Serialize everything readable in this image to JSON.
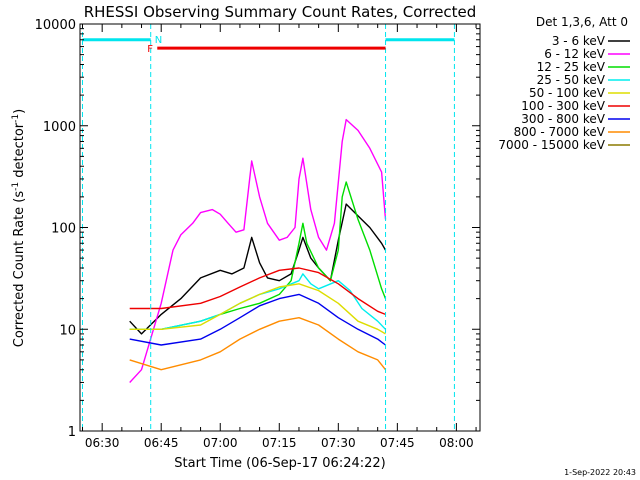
{
  "chart_data": {
    "type": "line",
    "title": "RHESSI Observing Summary Count Rates, Corrected",
    "xlabel": "Start Time (06-Sep-17 06:24:22)",
    "ylabel": "Corrected Count Rate (s⁻¹ detector⁻¹)",
    "ylabel_parts": [
      "Corrected Count Rate (s",
      "-1",
      " detector",
      "-1",
      ")"
    ],
    "yscale": "log",
    "ylim": [
      1,
      10000
    ],
    "xlim": [
      "06:24:22",
      "08:06:00"
    ],
    "x_ticks": [
      "06:30",
      "06:45",
      "07:00",
      "07:15",
      "07:30",
      "07:45",
      "08:00"
    ],
    "y_ticks": [
      "1",
      "10",
      "100",
      "1000",
      "10000"
    ],
    "legend_header": "Det 1,3,6, Att 0",
    "legend_position": "top-right, outside plot",
    "timestamp": "1-Sep-2022 20:43",
    "flags": {
      "night_label": "N",
      "flare_label": "F",
      "night_intervals": [
        [
          "06:25:00",
          "06:42:20"
        ],
        [
          "07:42:00",
          "07:59:30"
        ]
      ],
      "flare_interval": [
        "06:44:00",
        "07:42:00"
      ],
      "night_level": 7000,
      "flare_level": 5800,
      "night_color": "#00e5ee",
      "flare_color": "#ee0000"
    },
    "series": [
      {
        "name": "3 - 6 keV",
        "color": "#000000",
        "x": [
          "06:37",
          "06:40",
          "06:45",
          "06:50",
          "06:55",
          "07:00",
          "07:03",
          "07:06",
          "07:08",
          "07:10",
          "07:12",
          "07:15",
          "07:18",
          "07:20",
          "07:21",
          "07:23",
          "07:25",
          "07:28",
          "07:30",
          "07:32",
          "07:35",
          "07:38",
          "07:41",
          "07:42"
        ],
        "y": [
          12,
          9,
          14,
          20,
          32,
          38,
          35,
          40,
          80,
          45,
          32,
          30,
          35,
          60,
          80,
          50,
          40,
          30,
          75,
          170,
          130,
          100,
          70,
          60
        ]
      },
      {
        "name": "6 - 12 keV",
        "color": "#ff00ff",
        "x": [
          "06:37",
          "06:40",
          "06:45",
          "06:48",
          "06:50",
          "06:53",
          "06:55",
          "06:58",
          "07:00",
          "07:02",
          "07:04",
          "07:06",
          "07:08",
          "07:10",
          "07:12",
          "07:15",
          "07:17",
          "07:19",
          "07:20",
          "07:21",
          "07:23",
          "07:25",
          "07:27",
          "07:29",
          "07:31",
          "07:32",
          "07:35",
          "07:38",
          "07:41",
          "07:42"
        ],
        "y": [
          3,
          4,
          18,
          60,
          85,
          110,
          140,
          150,
          135,
          110,
          90,
          95,
          450,
          200,
          110,
          75,
          80,
          100,
          300,
          480,
          150,
          80,
          60,
          110,
          700,
          1150,
          900,
          600,
          350,
          120
        ]
      },
      {
        "name": "12 - 25 keV",
        "color": "#00dd00",
        "x": [
          "06:37",
          "06:45",
          "06:55",
          "07:00",
          "07:05",
          "07:10",
          "07:15",
          "07:18",
          "07:20",
          "07:21",
          "07:22",
          "07:25",
          "07:28",
          "07:30",
          "07:31",
          "07:32",
          "07:35",
          "07:38",
          "07:41",
          "07:42"
        ],
        "y": [
          10,
          10,
          12,
          14,
          16,
          18,
          22,
          30,
          70,
          110,
          70,
          40,
          30,
          60,
          200,
          280,
          120,
          60,
          25,
          20
        ]
      },
      {
        "name": "25 - 50 keV",
        "color": "#00eeee",
        "x": [
          "06:37",
          "06:45",
          "06:55",
          "07:00",
          "07:05",
          "07:10",
          "07:15",
          "07:20",
          "07:21",
          "07:23",
          "07:25",
          "07:30",
          "07:33",
          "07:36",
          "07:40",
          "07:42"
        ],
        "y": [
          10,
          10,
          12,
          14,
          18,
          22,
          25,
          30,
          35,
          28,
          25,
          30,
          24,
          16,
          12,
          10
        ]
      },
      {
        "name": "50 - 100 keV",
        "color": "#dddd00",
        "x": [
          "06:37",
          "06:45",
          "06:55",
          "07:00",
          "07:05",
          "07:10",
          "07:15",
          "07:20",
          "07:25",
          "07:30",
          "07:35",
          "07:40",
          "07:42"
        ],
        "y": [
          10,
          10,
          11,
          14,
          18,
          22,
          26,
          28,
          24,
          18,
          12,
          10,
          9
        ]
      },
      {
        "name": "100 - 300 keV",
        "color": "#ee0000",
        "x": [
          "06:37",
          "06:45",
          "06:55",
          "07:00",
          "07:05",
          "07:10",
          "07:15",
          "07:20",
          "07:25",
          "07:30",
          "07:35",
          "07:40",
          "07:42"
        ],
        "y": [
          16,
          16,
          18,
          21,
          26,
          32,
          38,
          40,
          36,
          28,
          20,
          15,
          14
        ]
      },
      {
        "name": "300 - 800 keV",
        "color": "#0000ee",
        "x": [
          "06:37",
          "06:45",
          "06:55",
          "07:00",
          "07:05",
          "07:10",
          "07:15",
          "07:20",
          "07:25",
          "07:30",
          "07:35",
          "07:40",
          "07:42"
        ],
        "y": [
          8,
          7,
          8,
          10,
          13,
          17,
          20,
          22,
          18,
          13,
          10,
          8,
          7
        ]
      },
      {
        "name": "800 - 7000 keV",
        "color": "#ff8c00",
        "x": [
          "06:37",
          "06:45",
          "06:55",
          "07:00",
          "07:05",
          "07:10",
          "07:15",
          "07:20",
          "07:25",
          "07:30",
          "07:35",
          "07:40",
          "07:42"
        ],
        "y": [
          5,
          4,
          5,
          6,
          8,
          10,
          12,
          13,
          11,
          8,
          6,
          5,
          4
        ]
      },
      {
        "name": "7000 - 15000 keV",
        "color": "#8b7a00",
        "x": [],
        "y": []
      }
    ]
  }
}
